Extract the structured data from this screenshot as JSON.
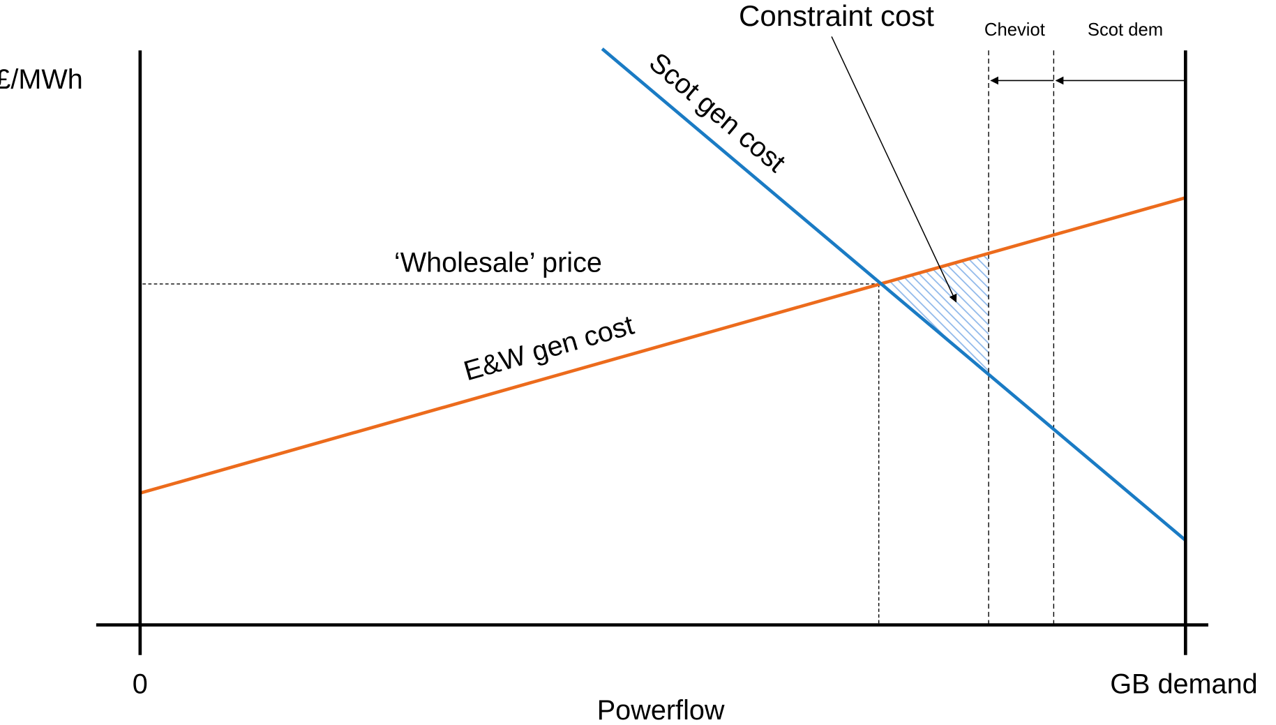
{
  "y_axis_label": "£/MWh",
  "x_axis_label": "Powerflow",
  "x_origin_label": "0",
  "x_end_label": "GB demand",
  "scot_curve_label": "Scot gen cost",
  "ew_curve_label": "E&W gen cost",
  "price_label": "‘Wholesale’ price",
  "constraint_label": "Constraint cost",
  "cheviot_label": "Cheviot",
  "scot_dem_label": "Scot dem"
}
